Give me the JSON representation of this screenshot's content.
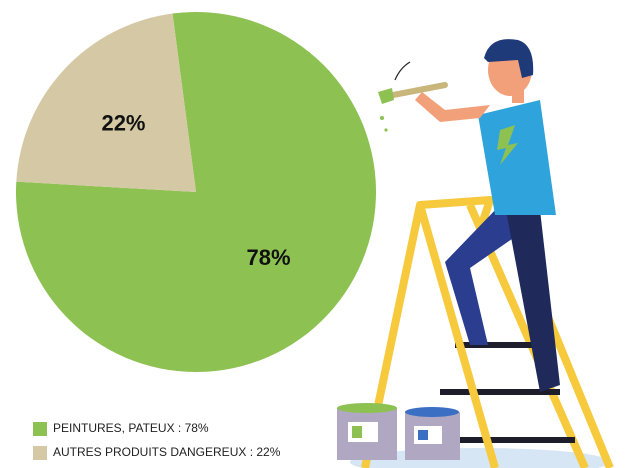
{
  "chart_data": {
    "type": "pie",
    "categories": [
      "PEINTURES, PATEUX : 78%",
      "AUTRES PRODUITS DANGEREUX : 22%"
    ],
    "values": [
      78,
      22
    ],
    "value_labels": [
      "78%",
      "22%"
    ],
    "colors": [
      "#8dc152",
      "#d5c9a5"
    ],
    "legend": "bottom-left"
  }
}
